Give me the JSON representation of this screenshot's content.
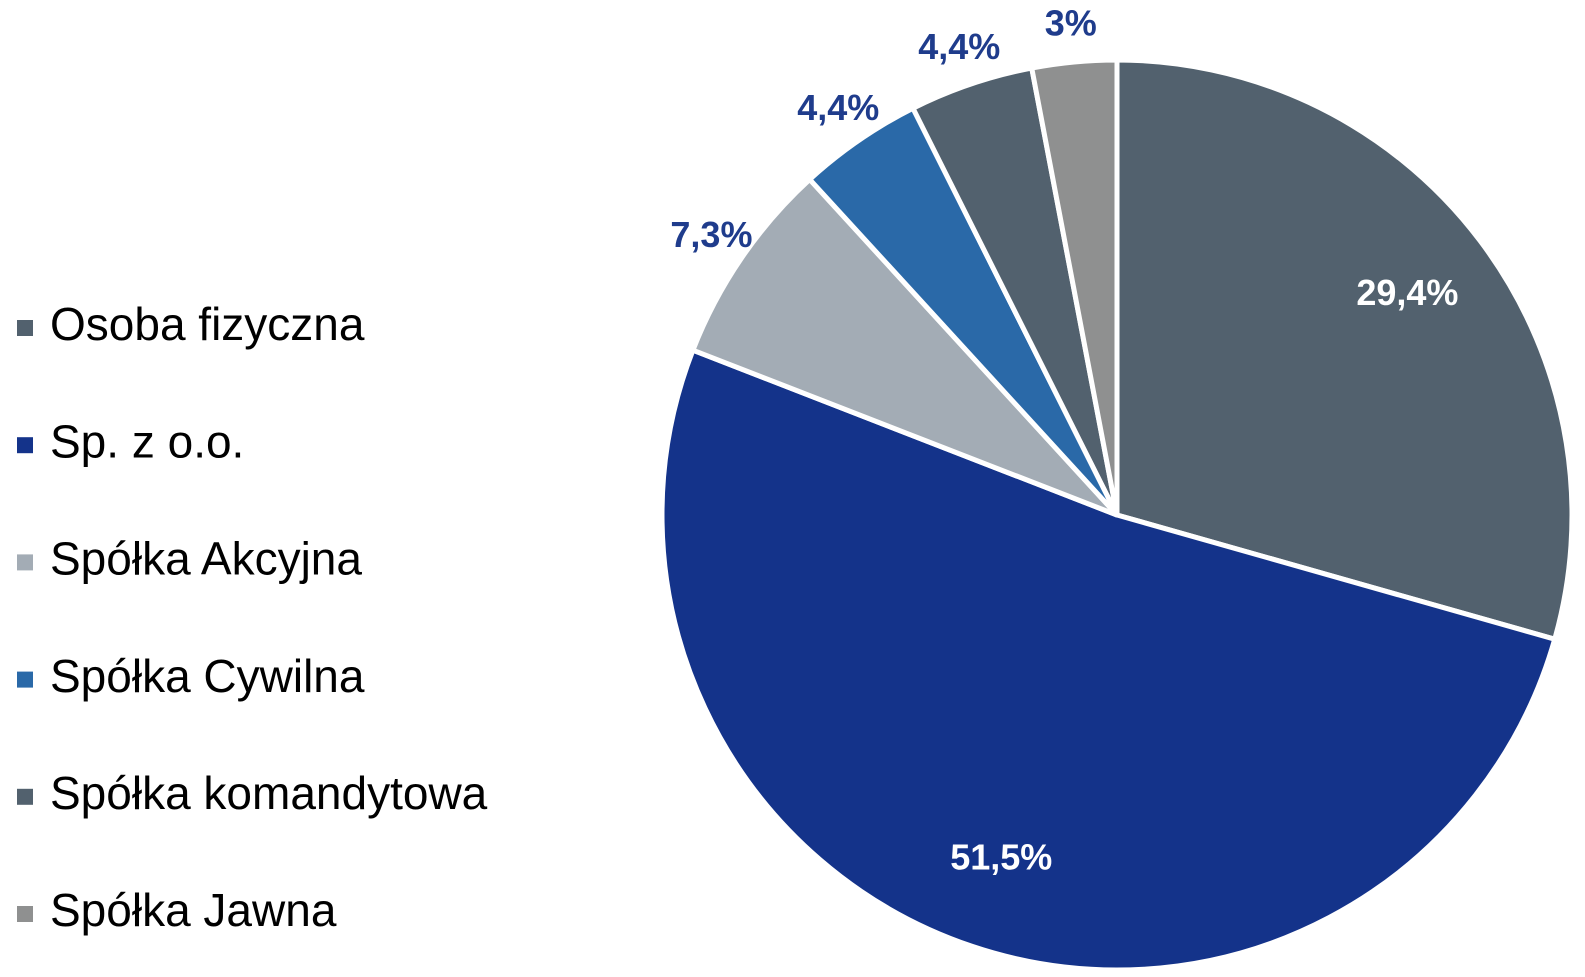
{
  "chart_data": {
    "type": "pie",
    "categories": [
      "Osoba fizyczna",
      "Sp. z o.o.",
      "Spółka Akcyjna",
      "Spółka Cywilna",
      "Spółka komandytowa",
      "Spółka Jawna"
    ],
    "values": [
      29.4,
      51.5,
      7.3,
      4.4,
      4.4,
      3
    ],
    "value_labels": [
      "29,4%",
      "51,5%",
      "7,3%",
      "4,4%",
      "4,4%",
      "3%"
    ],
    "colors": [
      "#52616e",
      "#14338a",
      "#a3acb5",
      "#2a69a8",
      "#52616e",
      "#8f9090"
    ],
    "legend": "left"
  }
}
